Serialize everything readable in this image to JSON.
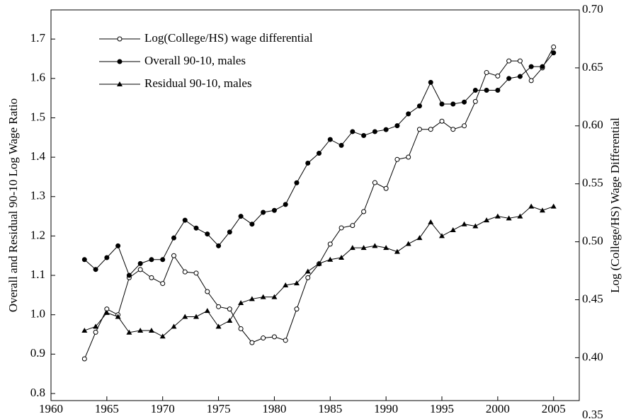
{
  "chart_data": {
    "type": "line",
    "ylabel": "Overall and Residual 90-10 Log Wage Ratio",
    "y2label": "Log (College/HS) Wage Differential",
    "x": [
      1963,
      1964,
      1965,
      1966,
      1967,
      1968,
      1969,
      1970,
      1971,
      1972,
      1973,
      1974,
      1975,
      1976,
      1977,
      1978,
      1979,
      1980,
      1981,
      1982,
      1983,
      1984,
      1985,
      1986,
      1987,
      1988,
      1989,
      1990,
      1991,
      1992,
      1993,
      1994,
      1995,
      1996,
      1997,
      1998,
      1999,
      2000,
      2001,
      2002,
      2003,
      2004,
      2005
    ],
    "series": [
      {
        "name": "Log(College/HS) wage differential",
        "color": "#000000",
        "marker": "open-circle",
        "axis": "y2",
        "values": [
          0.399,
          0.422,
          0.442,
          0.437,
          0.469,
          0.476,
          0.469,
          0.464,
          0.488,
          0.474,
          0.473,
          0.457,
          0.444,
          0.442,
          0.425,
          0.413,
          0.417,
          0.418,
          0.415,
          0.442,
          0.469,
          0.481,
          0.498,
          0.512,
          0.514,
          0.526,
          0.551,
          0.546,
          0.571,
          0.573,
          0.597,
          0.597,
          0.604,
          0.597,
          0.6,
          0.621,
          0.646,
          0.643,
          0.656,
          0.656,
          0.639,
          0.65,
          0.668
        ]
      },
      {
        "name": "Overall 90-10, males",
        "color": "#000000",
        "marker": "filled-circle",
        "values": [
          1.14,
          1.115,
          1.145,
          1.175,
          1.1,
          1.13,
          1.14,
          1.14,
          1.195,
          1.24,
          1.22,
          1.205,
          1.175,
          1.21,
          1.25,
          1.23,
          1.26,
          1.265,
          1.28,
          1.335,
          1.385,
          1.41,
          1.445,
          1.43,
          1.465,
          1.455,
          1.465,
          1.47,
          1.48,
          1.51,
          1.53,
          1.59,
          1.535,
          1.535,
          1.54,
          1.57,
          1.57,
          1.57,
          1.6,
          1.605,
          1.63,
          1.63,
          1.665
        ]
      },
      {
        "name": "Residual 90-10, males",
        "color": "#000000",
        "marker": "triangle",
        "values": [
          0.96,
          0.97,
          1.005,
          0.995,
          0.955,
          0.96,
          0.96,
          0.945,
          0.97,
          0.995,
          0.995,
          1.01,
          0.97,
          0.985,
          1.03,
          1.04,
          1.045,
          1.045,
          1.075,
          1.08,
          1.11,
          1.13,
          1.14,
          1.145,
          1.17,
          1.17,
          1.175,
          1.17,
          1.16,
          1.18,
          1.195,
          1.235,
          1.2,
          1.215,
          1.23,
          1.225,
          1.24,
          1.25,
          1.245,
          1.25,
          1.275,
          1.265,
          1.275
        ]
      }
    ],
    "xlim": [
      1960,
      2007.3
    ],
    "xticks": [
      1960,
      1965,
      1970,
      1975,
      1980,
      1985,
      1990,
      1995,
      2000,
      2005
    ],
    "ylim": [
      0.782,
      1.774
    ],
    "yticks": [
      0.8,
      0.9,
      {
        "value": 1,
        "label": "1.0"
      },
      1.1,
      1.2,
      1.3,
      1.4,
      1.5,
      1.6,
      1.7
    ],
    "y2lim": [
      0.363,
      0.7
    ],
    "y2ticks": [
      0.35,
      {
        "value": 0.4,
        "label": "0.40"
      },
      0.45,
      {
        "value": 0.5,
        "label": "0.50"
      },
      0.55,
      {
        "value": 0.6,
        "label": "0.60"
      },
      0.65,
      {
        "value": 0.7,
        "label": "0.70"
      }
    ],
    "legend": "upper-left",
    "grid": false
  }
}
